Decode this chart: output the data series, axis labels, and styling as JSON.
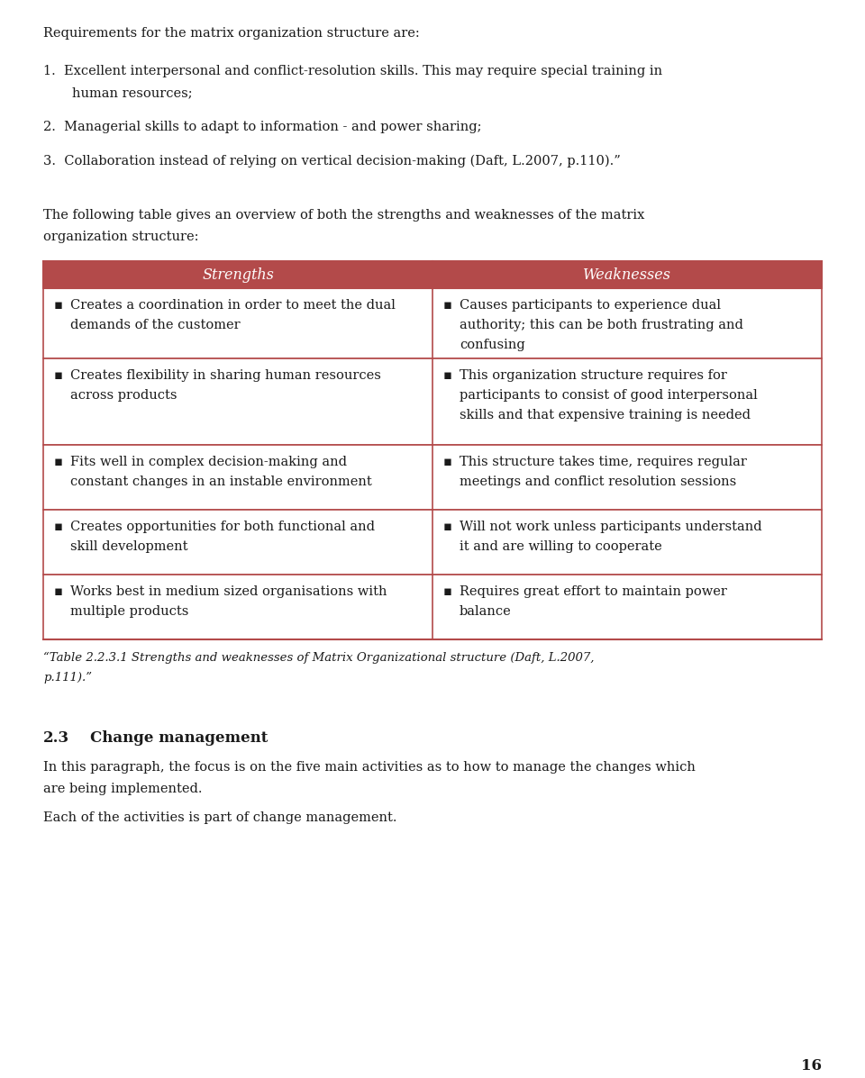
{
  "bg_color": "#ffffff",
  "text_color": "#1a1a1a",
  "header_bg": "#b34a4a",
  "header_text_color": "#ffffff",
  "border_color": "#b34a4a",
  "font_size_body": 10.5,
  "font_size_header": 11.5,
  "font_size_section": 12,
  "font_size_small": 9.5,
  "table_header_left": "Strengths",
  "table_header_right": "Weaknesses",
  "table_rows_left": [
    "Creates a coordination in order to meet the dual\ndemands of the customer",
    "Creates flexibility in sharing human resources\nacross products",
    "Fits well in complex decision-making and\nconstant changes in an instable environment",
    "Creates opportunities for both functional and\nskill development",
    "Works best in medium sized organisations with\nmultiple products"
  ],
  "table_rows_right": [
    "Causes participants to experience dual\nauthority; this can be both frustrating and\nconfusing",
    "This organization structure requires for\nparticipants to consist of good interpersonal\nskills and that expensive training is needed",
    "This structure takes time, requires regular\nmeetings and conflict resolution sessions",
    "Will not work unless participants understand\nit and are willing to cooperate",
    "Requires great effort to maintain power\nbalance"
  ],
  "caption_line1": "“Table 2.2.3.1 Strengths and weaknesses of Matrix Organizational structure (Daft, L.2007,",
  "caption_line2": "p.111).”",
  "section_heading_num": "2.3",
  "section_heading_text": "Change management",
  "section_body1_line1": "In this paragraph, the focus is on the five main activities as to how to manage the changes which",
  "section_body1_line2": "are being implemented.",
  "section_body2": "Each of the activities is part of change management.",
  "page_number": "16",
  "bullet": "▪"
}
